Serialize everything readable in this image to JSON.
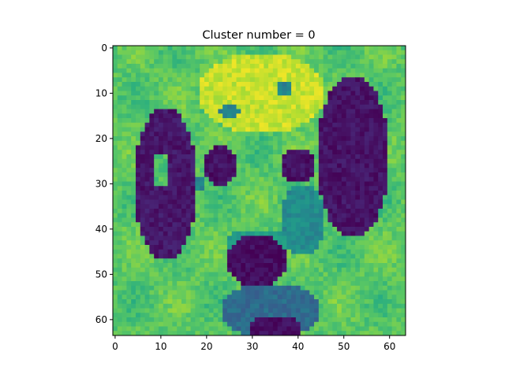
{
  "chart_data": {
    "type": "heatmap",
    "title": "Cluster number = 0",
    "xlabel": "",
    "ylabel": "",
    "image_size": [
      64,
      64
    ],
    "colormap": "viridis",
    "xlim": [
      -0.5,
      63.5
    ],
    "ylim": [
      63.5,
      -0.5
    ],
    "x_ticks": [
      0,
      10,
      20,
      30,
      40,
      50,
      60
    ],
    "x_tick_labels": [
      "0",
      "10",
      "20",
      "30",
      "40",
      "50",
      "60"
    ],
    "y_ticks": [
      0,
      10,
      20,
      30,
      40,
      50,
      60
    ],
    "y_tick_labels": [
      "0",
      "10",
      "20",
      "30",
      "40",
      "50",
      "60"
    ],
    "grid": false,
    "content": "grayscale photo of a dalmatian dog face rendered with viridis colormap"
  }
}
